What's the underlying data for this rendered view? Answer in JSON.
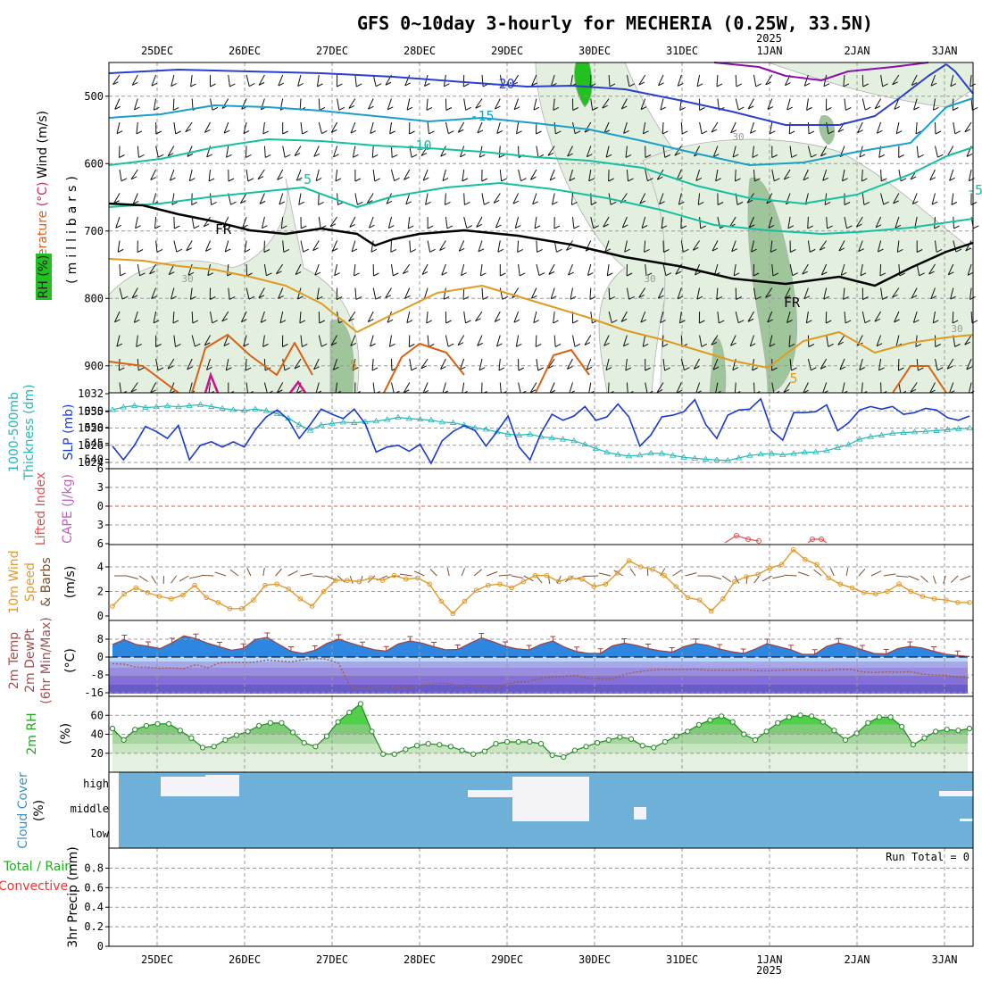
{
  "title": "GFS 0~10day 3-hourly for MECHERIA (0.25W, 33.5N)",
  "year_label": "2025",
  "run_total_label": "Run Total = 0",
  "date_labels": [
    "25DEC",
    "26DEC",
    "27DEC",
    "28DEC",
    "29DEC",
    "30DEC",
    "31DEC",
    "1JAN",
    "2JAN",
    "3JAN"
  ],
  "colors": {
    "rh_fill_light": "#e3f0e0",
    "rh_fill_mid": "#9fc59a",
    "rh_fill_dark": "#6f9a6a",
    "rh_fill_green": "#22c020",
    "temp_blue": "#2a3fd0",
    "temp_cyan": "#1aa0c8",
    "temp_teal": "#14c0a0",
    "temp_purple": "#8a10b0",
    "temp_orange": "#e09a20",
    "temp_darkorange": "#d86010",
    "freezing": "#000000",
    "thickness": "#26b6b6",
    "slp": "#1a3acc",
    "cape": "#c060c0",
    "lifted_index": "#e05050",
    "wind10": "#e09a30",
    "barbs10": "#7a5030",
    "temp2m_fill": "#2d86e0",
    "dewpt2m": "#a06040",
    "rh2m_fill": "#44dd44",
    "cloud_fill": "#6fb0d8",
    "cloud_clear": "#f4f4f8",
    "precip_total": "#22aa22",
    "precip_conv": "#ee3333"
  },
  "panels": {
    "upper_air": {
      "y_labels": [
        "500",
        "600",
        "700",
        "800",
        "900"
      ],
      "axis_parts": [
        {
          "text": "Wind (m/s)",
          "color": "#000000"
        },
        {
          "text": "Temperature",
          "color": "#e06020"
        },
        {
          "text": "(°C)",
          "color": "#d02060"
        }
      ],
      "pressure_axis": "(millibars)",
      "rh_label": "RH (%)",
      "contour_labels": [
        "-20",
        "-15",
        "-10",
        "-5",
        "FR",
        "FR",
        "-5",
        "5",
        "5",
        "30",
        "30",
        "30",
        "30"
      ]
    },
    "thickness_slp": {
      "left_labels": [
        "555",
        "550",
        "545",
        "540"
      ],
      "right_labels": [
        "1032",
        "1030",
        "1028",
        "1026",
        "1024"
      ],
      "title_thickness": "1000-500mb",
      "title_thickness2": "Thickness (dm)",
      "title_slp": "SLP (mb)"
    },
    "stability": {
      "y_labels": [
        "6",
        "3",
        "0",
        "3",
        "6"
      ],
      "title_li": "Lifted Index",
      "title_cape": "CAPE (J/kg)"
    },
    "wind10": {
      "y_labels": [
        "4",
        "2",
        "0"
      ],
      "title_a": "10m Wind",
      "title_b": "Speed",
      "title_c": "& Barbs",
      "unit": "(m/s)"
    },
    "temp2m": {
      "y_labels": [
        "8",
        "0",
        "-8",
        "-16"
      ],
      "title_a": "2m Temp",
      "title_b": "2m DewPt",
      "title_c": "(6hr Min/Max)",
      "unit": "(°C)"
    },
    "rh2m": {
      "y_labels": [
        "60",
        "40",
        "20"
      ],
      "title": "2m RH",
      "unit": "(%)"
    },
    "cloud": {
      "levels": [
        "high",
        "middle",
        "low"
      ],
      "title": "Cloud Cover",
      "unit": "(%)"
    },
    "precip": {
      "y_labels": [
        "0.8",
        "0.6",
        "0.4",
        "0.2",
        "0"
      ],
      "title_total": "Total / Rain",
      "title_conv": "Convective",
      "title_axis": "3hr Precip (mm)"
    }
  },
  "chart_data": [
    {
      "type": "line",
      "name": "upper-air cross section",
      "x_days": [
        0,
        1,
        2,
        3,
        4,
        5,
        6,
        7,
        8,
        9,
        10
      ],
      "ylim_mb": [
        450,
        940
      ],
      "temperature_contours_degC": [
        -20,
        -15,
        -10,
        -5,
        0,
        5
      ]
    },
    {
      "type": "line",
      "name": "thickness_and_slp",
      "slp_mb": [
        1025.9,
        1024.3,
        1026.0,
        1028.2,
        1027.6,
        1026.8,
        1028.3,
        1024.3,
        1026.0,
        1026.4,
        1025.8,
        1026.4,
        1025.8,
        1027.8,
        1029.3,
        1030.1,
        1029.0,
        1026.8,
        1028.4,
        1030.2,
        1029.6,
        1029.1,
        1030.2,
        1028.5,
        1025.2,
        1025.8,
        1026.0,
        1025.3,
        1026.1,
        1023.9,
        1026.5,
        1027.6,
        1028.3,
        1027.7,
        1025.9,
        1027.6,
        1029.4,
        1025.8,
        1024.3,
        1027.4,
        1029.6,
        1028.9,
        1029.4,
        1030.5,
        1028.9,
        1029.3,
        1030.8,
        1029.3,
        1025.9,
        1027.2,
        1029.3,
        1029.5,
        1029.9,
        1031.3,
        1028.4,
        1026.8,
        1029.5,
        1030.1,
        1030.2,
        1031.4,
        1027.7,
        1026.6,
        1029.8,
        1029.8,
        1029.9,
        1030.7,
        1027.7,
        1028.6,
        1030.1,
        1030.5,
        1030.2,
        1030.5,
        1029.6,
        1029.8,
        1030.3,
        1030.1,
        1029.2,
        1028.9,
        1029.4
      ],
      "thickness_dm": [
        555.6,
        556.4,
        556.9,
        556.3,
        556.5,
        556.8,
        556.5,
        556.9,
        557.2,
        556.6,
        556.0,
        555.6,
        555.4,
        555.8,
        555.3,
        554.3,
        552.9,
        550.9,
        549.1,
        550.8,
        551.3,
        551.7,
        551.5,
        551.8,
        552.0,
        552.5,
        553.2,
        552.8,
        552.6,
        552.3,
        551.7,
        551.5,
        550.8,
        549.9,
        549.4,
        548.6,
        547.9,
        547.6,
        547.9,
        547.1,
        546.7,
        546.3,
        545.8,
        544.7,
        543.4,
        542.2,
        541.5,
        541.0,
        541.3,
        541.9,
        541.8,
        541.2,
        540.6,
        540.3,
        540.0,
        539.8,
        539.6,
        540.4,
        541.2,
        541.6,
        541.8,
        541.4,
        541.8,
        542.2,
        542.3,
        542.7,
        543.7,
        544.6,
        546.3,
        547.1,
        547.6,
        548.2,
        548.4,
        548.6,
        548.8,
        549.0,
        549.3,
        549.6,
        549.8
      ]
    },
    {
      "type": "line",
      "name": "10m wind speed",
      "unit": "m/s",
      "values": [
        0.8,
        1.8,
        2.3,
        1.9,
        1.6,
        1.4,
        1.7,
        2.5,
        1.5,
        1.1,
        0.6,
        0.6,
        1.3,
        2.5,
        2.6,
        2.2,
        1.4,
        0.8,
        2.0,
        2.9,
        2.9,
        2.8,
        3.1,
        2.9,
        3.3,
        3.0,
        3.1,
        2.6,
        1.2,
        0.2,
        1.2,
        2.1,
        2.5,
        2.6,
        2.3,
        2.8,
        3.3,
        3.3,
        2.8,
        3.1,
        3.0,
        2.4,
        2.6,
        3.5,
        4.5,
        4.0,
        3.8,
        3.3,
        2.4,
        1.5,
        1.3,
        0.4,
        1.4,
        2.8,
        3.2,
        3.4,
        3.9,
        4.2,
        5.4,
        4.6,
        4.2,
        3.1,
        2.6,
        2.3,
        1.9,
        1.8,
        2.0,
        2.6,
        2.0,
        1.6,
        1.4,
        1.3,
        1.1,
        1.1
      ]
    },
    {
      "type": "area",
      "name": "2m temperature / dewpoint",
      "unit": "degC",
      "temp": [
        5.6,
        7.8,
        5.6,
        4.8,
        3.8,
        6.4,
        9.5,
        8.3,
        6.2,
        4.6,
        3.1,
        3.9,
        7.9,
        8.8,
        5.6,
        2.6,
        1.6,
        3.0,
        6.1,
        8.0,
        6.3,
        4.7,
        3.3,
        2.7,
        5.9,
        7.2,
        6.3,
        4.6,
        3.3,
        3.4,
        6.1,
        8.6,
        6.8,
        4.8,
        3.7,
        3.2,
        5.7,
        7.2,
        4.4,
        2.5,
        1.7,
        1.7,
        5.0,
        6.2,
        5.3,
        3.8,
        2.8,
        2.2,
        4.6,
        6.1,
        5.3,
        3.6,
        2.4,
        1.6,
        3.6,
        6.0,
        4.6,
        3.3,
        1.2,
        1.3,
        4.8,
        6.3,
        5.0,
        3.2,
        1.6,
        1.4,
        3.8,
        4.8,
        4.1,
        2.6,
        1.3,
        0.7,
        0.2
      ],
      "dewpt": [
        -3.0,
        -3.2,
        -4.5,
        -4.6,
        -5.0,
        -4.8,
        -5.2,
        -3.4,
        -4.8,
        -2.6,
        -2.4,
        -2.5,
        -2.2,
        -1.3,
        -1.8,
        -2.2,
        -1.2,
        -0.6,
        -1.0,
        -2.8,
        -13.5,
        -14.2,
        -13.6,
        -13.3,
        -13.7,
        -14.0,
        -12.6,
        -11.8,
        -11.7,
        -12.8,
        -12.5,
        -13.0,
        -14.0,
        -12.1,
        -11.2,
        -10.9,
        -9.6,
        -8.8,
        -8.6,
        -8.2,
        -9.5,
        -9.7,
        -9.8,
        -7.8,
        -6.7,
        -6.0,
        -5.6,
        -5.5,
        -5.6,
        -5.4,
        -6.0,
        -5.9,
        -6.0,
        -5.5,
        -6.1,
        -6.2,
        -6.0,
        -5.7,
        -5.6,
        -5.9,
        -6.1,
        -5.4,
        -5.6,
        -6.6,
        -7.0,
        -6.6,
        -6.8,
        -6.5,
        -7.6,
        -8.0,
        -8.2,
        -9.0,
        -9.2
      ]
    },
    {
      "type": "area",
      "name": "2m relative humidity",
      "unit": "%",
      "values": [
        46,
        34,
        45,
        49,
        51,
        51,
        44,
        36,
        26,
        27,
        34,
        39,
        43,
        49,
        52,
        52,
        42,
        31,
        27,
        38,
        53,
        63,
        72,
        43,
        19,
        19,
        24,
        28,
        30,
        29,
        27,
        23,
        19,
        22,
        30,
        32,
        32,
        32,
        30,
        18,
        16,
        23,
        27,
        31,
        34,
        37,
        35,
        28,
        26,
        32,
        38,
        43,
        50,
        55,
        59,
        53,
        40,
        34,
        43,
        52,
        58,
        60,
        59,
        53,
        44,
        34,
        41,
        52,
        58,
        58,
        48,
        29,
        36,
        43,
        45,
        44,
        46
      ],
      "ylim": [
        0,
        80
      ]
    },
    {
      "type": "bar",
      "name": "3hr precipitation",
      "unit": "mm",
      "ylim": [
        0,
        1
      ],
      "run_total": 0
    }
  ]
}
